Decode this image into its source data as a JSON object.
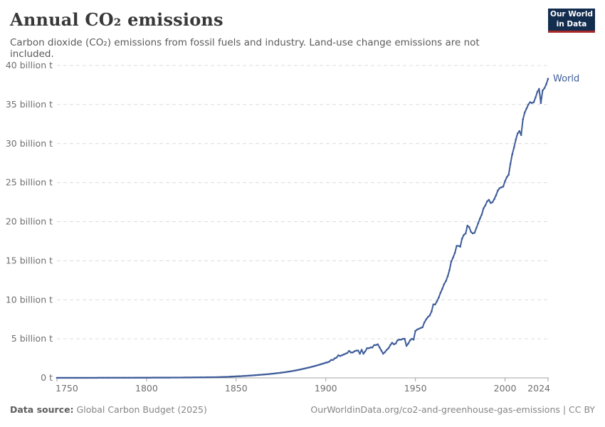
{
  "header": {
    "title": "Annual CO₂ emissions",
    "logo": {
      "line1": "Our World",
      "line2": "in Data"
    }
  },
  "subtitle": "Carbon dioxide (CO₂) emissions from fossil fuels and industry. Land-use change emissions are not included.",
  "footer": {
    "source_label": "Data source:",
    "source_value": " Global Carbon Budget (2025)",
    "link_text": "OurWorldinData.org/co2-and-greenhouse-gas-emissions | CC BY"
  },
  "colors": {
    "line": "#3e5c99",
    "grid": "#dcdcdc",
    "axis": "#a3a3a3",
    "logo_bg": "#132d4f",
    "logo_accent": "#a8282a"
  },
  "chart_data": {
    "type": "line",
    "title": "Annual CO₂ emissions",
    "unit": "billion t",
    "grid": "dashed-horizontal",
    "legend_position": "line-end",
    "x_range": [
      1750,
      2024
    ],
    "y_range_gt": [
      0,
      40
    ],
    "y_ticks": [
      {
        "value": 0,
        "label": "0 t"
      },
      {
        "value": 5,
        "label": "5 billion t"
      },
      {
        "value": 10,
        "label": "10 billion t"
      },
      {
        "value": 15,
        "label": "15 billion t"
      },
      {
        "value": 20,
        "label": "20 billion t"
      },
      {
        "value": 25,
        "label": "25 billion t"
      },
      {
        "value": 30,
        "label": "30 billion t"
      },
      {
        "value": 35,
        "label": "35 billion t"
      },
      {
        "value": 40,
        "label": "40 billion t"
      }
    ],
    "x_ticks": [
      {
        "value": 1750,
        "label": "1750"
      },
      {
        "value": 1800,
        "label": "1800"
      },
      {
        "value": 1850,
        "label": "1850"
      },
      {
        "value": 1900,
        "label": "1900"
      },
      {
        "value": 1950,
        "label": "1950"
      },
      {
        "value": 2000,
        "label": "2000"
      },
      {
        "value": 2024,
        "label": "2024"
      }
    ],
    "series": [
      {
        "name": "World",
        "start_year": 1750,
        "unit_gt_co2": true,
        "values": [
          0.0093,
          0.0095,
          0.0096,
          0.0098,
          0.0099,
          0.0101,
          0.0103,
          0.0105,
          0.0106,
          0.0108,
          0.011,
          0.0112,
          0.0114,
          0.0116,
          0.0118,
          0.012,
          0.0122,
          0.0124,
          0.0126,
          0.0128,
          0.013,
          0.0133,
          0.0136,
          0.0138,
          0.0141,
          0.0144,
          0.0147,
          0.015,
          0.0153,
          0.0157,
          0.016,
          0.0164,
          0.0167,
          0.0171,
          0.0175,
          0.0179,
          0.0183,
          0.0187,
          0.0191,
          0.0196,
          0.02,
          0.0208,
          0.0217,
          0.0226,
          0.0235,
          0.0245,
          0.0255,
          0.0266,
          0.0277,
          0.0288,
          0.03,
          0.0306,
          0.0313,
          0.0319,
          0.0326,
          0.0333,
          0.034,
          0.0347,
          0.0355,
          0.0362,
          0.037,
          0.0381,
          0.0391,
          0.0402,
          0.0414,
          0.0426,
          0.0438,
          0.045,
          0.0463,
          0.0476,
          0.049,
          0.0508,
          0.0526,
          0.0545,
          0.0565,
          0.0586,
          0.0607,
          0.0629,
          0.0652,
          0.0676,
          0.07,
          0.0724,
          0.0749,
          0.0774,
          0.0801,
          0.0828,
          0.0856,
          0.0886,
          0.0916,
          0.0947,
          0.098,
          0.105,
          0.113,
          0.121,
          0.13,
          0.139,
          0.149,
          0.16,
          0.171,
          0.184,
          0.197,
          0.208,
          0.22,
          0.232,
          0.245,
          0.259,
          0.273,
          0.288,
          0.305,
          0.322,
          0.34,
          0.355,
          0.372,
          0.388,
          0.406,
          0.425,
          0.444,
          0.464,
          0.485,
          0.507,
          0.53,
          0.554,
          0.58,
          0.606,
          0.634,
          0.663,
          0.694,
          0.725,
          0.759,
          0.793,
          0.83,
          0.868,
          0.908,
          0.95,
          0.993,
          1.04,
          1.09,
          1.14,
          1.19,
          1.24,
          1.3,
          1.35,
          1.41,
          1.47,
          1.53,
          1.59,
          1.66,
          1.73,
          1.8,
          1.87,
          1.95,
          2.0,
          2.1,
          2.3,
          2.3,
          2.5,
          2.6,
          2.9,
          2.8,
          2.9,
          3.0,
          3.1,
          3.2,
          3.46,
          3.25,
          3.25,
          3.4,
          3.5,
          3.5,
          3.1,
          3.6,
          3.1,
          3.4,
          3.8,
          3.8,
          3.9,
          3.9,
          4.2,
          4.2,
          4.3,
          3.9,
          3.5,
          3.1,
          3.3,
          3.6,
          3.8,
          4.2,
          4.5,
          4.3,
          4.4,
          4.8,
          4.9,
          4.9,
          5.0,
          5.0,
          4.1,
          4.4,
          4.8,
          5.0,
          4.9,
          6.0,
          6.2,
          6.3,
          6.4,
          6.5,
          7.1,
          7.5,
          7.8,
          8.0,
          8.5,
          9.4,
          9.4,
          9.8,
          10.3,
          10.9,
          11.4,
          12.0,
          12.4,
          13.0,
          13.8,
          14.9,
          15.4,
          16.0,
          16.9,
          16.9,
          16.8,
          17.8,
          18.3,
          18.5,
          19.5,
          19.3,
          18.7,
          18.5,
          18.6,
          19.2,
          19.8,
          20.4,
          20.9,
          21.7,
          22.1,
          22.6,
          22.8,
          22.4,
          22.5,
          22.9,
          23.4,
          24.0,
          24.3,
          24.4,
          24.5,
          25.2,
          25.7,
          26.0,
          27.4,
          28.6,
          29.5,
          30.5,
          31.3,
          31.6,
          31.1,
          33.1,
          34.0,
          34.5,
          35.0,
          35.3,
          35.2,
          35.3,
          35.9,
          36.6,
          37.0,
          35.2,
          36.8,
          37.1,
          37.6,
          38.3
        ]
      }
    ]
  }
}
